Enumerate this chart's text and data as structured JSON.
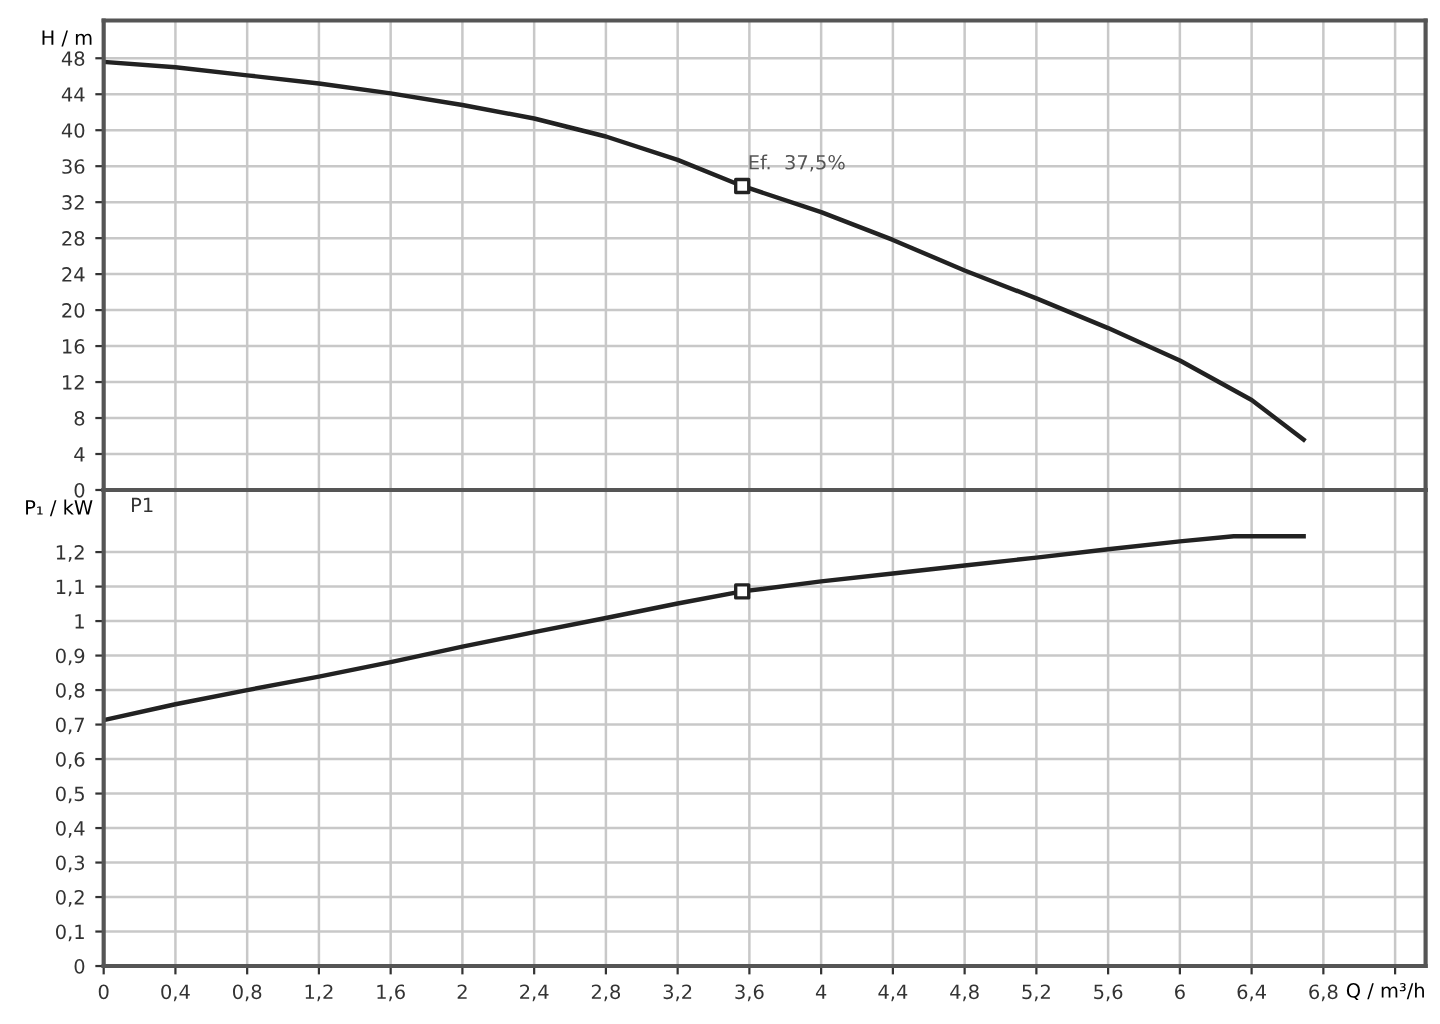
{
  "chart_data": [
    {
      "type": "line",
      "ylabel": "H / m",
      "xlim": [
        0,
        7.37
      ],
      "ylim": [
        0,
        52.2
      ],
      "xticks": [
        {
          "value": 0,
          "label": null
        },
        {
          "value": 0.4,
          "label": null
        },
        {
          "value": 0.8,
          "label": null
        },
        {
          "value": 1.2,
          "label": null
        },
        {
          "value": 1.6,
          "label": null
        },
        {
          "value": 2,
          "label": null
        },
        {
          "value": 2.4,
          "label": null
        },
        {
          "value": 2.8,
          "label": null
        },
        {
          "value": 3.2,
          "label": null
        },
        {
          "value": 3.6,
          "label": null
        },
        {
          "value": 4,
          "label": null
        },
        {
          "value": 4.4,
          "label": null
        },
        {
          "value": 4.8,
          "label": null
        },
        {
          "value": 5.2,
          "label": null
        },
        {
          "value": 5.6,
          "label": null
        },
        {
          "value": 6,
          "label": null
        },
        {
          "value": 6.4,
          "label": null
        },
        {
          "value": 6.8,
          "label": null
        },
        {
          "value": 7.2,
          "label": null
        }
      ],
      "yticks": [
        0,
        4,
        8,
        12,
        16,
        20,
        24,
        28,
        32,
        36,
        40,
        44,
        48
      ],
      "tick_labels": "y",
      "grid": true,
      "series": [
        {
          "color": "#222222",
          "x": [
            0,
            0.4,
            0.8,
            1.2,
            1.6,
            2.0,
            2.4,
            2.8,
            3.2,
            3.56,
            4.0,
            4.4,
            4.8,
            5.2,
            5.6,
            6.0,
            6.4,
            6.69
          ],
          "values": [
            47.6,
            47.0,
            46.1,
            45.2,
            44.1,
            42.8,
            41.3,
            39.3,
            36.7,
            33.8,
            30.9,
            27.8,
            24.4,
            21.3,
            18.0,
            14.4,
            10.0,
            5.6
          ]
        },
        {
          "type": "scatter",
          "marker": "square",
          "color": "#222222",
          "x": [
            3.56
          ],
          "values": [
            33.8
          ]
        }
      ],
      "annotations": [
        {
          "text": "Ef.  37,5%",
          "x": 3.56,
          "y": 33.8
        }
      ]
    },
    {
      "type": "line",
      "ylabel": "P₁ / kW",
      "xlabel": "Q / m³/h",
      "xlim": [
        0,
        7.37
      ],
      "ylim": [
        0,
        1.38
      ],
      "xticks": [
        0,
        {
          "value": 0.4,
          "label": "0,4"
        },
        {
          "value": 0.8,
          "label": "0,8"
        },
        {
          "value": 1.2,
          "label": "1,2"
        },
        {
          "value": 1.6,
          "label": "1,6"
        },
        2,
        {
          "value": 2.4,
          "label": "2,4"
        },
        {
          "value": 2.8,
          "label": "2,8"
        },
        {
          "value": 3.2,
          "label": "3,2"
        },
        {
          "value": 3.6,
          "label": "3,6"
        },
        4,
        {
          "value": 4.4,
          "label": "4,4"
        },
        {
          "value": 4.8,
          "label": "4,8"
        },
        {
          "value": 5.2,
          "label": "5,2"
        },
        {
          "value": 5.6,
          "label": "5,6"
        },
        6,
        {
          "value": 6.4,
          "label": "6,4"
        },
        {
          "value": 6.8,
          "label": "6,8"
        },
        {
          "value": 7.2,
          "label": null
        }
      ],
      "yticks": [
        0,
        {
          "value": 0.1,
          "label": "0,1"
        },
        {
          "value": 0.2,
          "label": "0,2"
        },
        {
          "value": 0.3,
          "label": "0,3"
        },
        {
          "value": 0.4,
          "label": "0,4"
        },
        {
          "value": 0.5,
          "label": "0,5"
        },
        {
          "value": 0.6,
          "label": "0,6"
        },
        {
          "value": 0.7,
          "label": "0,7"
        },
        {
          "value": 0.8,
          "label": "0,8"
        },
        {
          "value": 0.9,
          "label": "0,9"
        },
        1,
        {
          "value": 1.1,
          "label": "1,1"
        },
        {
          "value": 1.2,
          "label": "1,2"
        }
      ],
      "grid": true,
      "series": [
        {
          "color": "#222222",
          "x": [
            0,
            0.4,
            0.8,
            1.2,
            1.6,
            2.0,
            2.4,
            2.8,
            3.2,
            3.56,
            4.0,
            4.4,
            4.8,
            5.2,
            5.6,
            6.0,
            6.3,
            6.69
          ],
          "values": [
            0.713,
            0.759,
            0.8,
            0.839,
            0.881,
            0.926,
            0.968,
            1.009,
            1.051,
            1.086,
            1.115,
            1.138,
            1.161,
            1.184,
            1.208,
            1.231,
            1.246,
            1.246
          ]
        },
        {
          "type": "scatter",
          "marker": "square",
          "color": "#222222",
          "x": [
            3.56
          ],
          "values": [
            1.086
          ]
        }
      ],
      "annotations": [
        "P1"
      ]
    }
  ]
}
